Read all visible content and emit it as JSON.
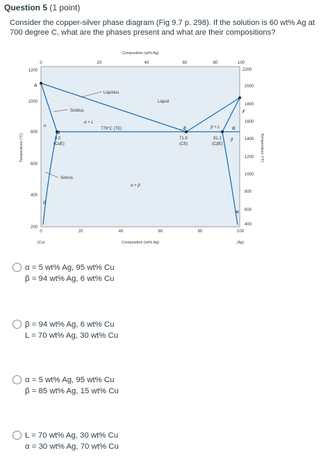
{
  "question": {
    "number_label": "Question 5",
    "points": "(1 point)",
    "text": "Consider the copper-silver phase diagram (Fig 9.7 p. 298). If the solution is 60 wt% Ag at 700 degree C, what are the phases present and what are their compositions?"
  },
  "diagram": {
    "top_axis_title": "Composition (at% Ag)",
    "bottom_axis_title": "Composition (wt% Ag)",
    "left_axis_title": "Temperature (°C)",
    "right_axis_title": "Temperature (°F)",
    "top_ticks": [
      "0",
      "20",
      "40",
      "60",
      "80",
      "100"
    ],
    "bottom_ticks": [
      "0",
      "20",
      "40",
      "60",
      "80",
      "100"
    ],
    "left_ticks": [
      "1200",
      "1000",
      "800",
      "600",
      "400",
      "200"
    ],
    "right_ticks": [
      "2200",
      "2000",
      "1800",
      "1600",
      "1400",
      "1200",
      "1000",
      "800",
      "600",
      "400"
    ],
    "bottom_left_label": "(Cu)",
    "bottom_right_label": "(Ag)",
    "labels": {
      "A": "A",
      "B": "B",
      "C": "C",
      "E": "E",
      "F": "F",
      "G": "G",
      "H": "H",
      "liquidus": "Liquidus",
      "liquid": "Liquid",
      "solidus": "Solidus",
      "solvus": "Solvus",
      "alpha": "α",
      "beta": "β",
      "alpha_plus_l": "α + L",
      "beta_plus_l": "β + L",
      "alpha_plus_beta": "α + β",
      "eutectic_temp": "779°C (TE)",
      "val_8": "8.0",
      "c_alpha_e": "(CαE)",
      "val_71": "71.9",
      "c_e": "(CE)",
      "val_912": "91.2",
      "c_beta_e": "(CβE)"
    }
  },
  "options": [
    {
      "line1": "α = 5 wt% Ag, 95 wt% Cu",
      "line2": "β = 94 wt% Ag, 6 wt% Cu"
    },
    {
      "line1": "β = 94 wt% Ag, 6 wt% Cu",
      "line2": "L = 70 wt% Ag, 30 wt% Cu"
    },
    {
      "line1": "α = 5 wt% Ag, 95 wt% Cu",
      "line2": "β = 85 wt% Ag, 15 wt% Cu"
    },
    {
      "line1": "L = 70 wt% Ag, 30 wt% Cu",
      "line2": "α = 30 wt% Ag, 70 wt% Cu"
    }
  ]
}
